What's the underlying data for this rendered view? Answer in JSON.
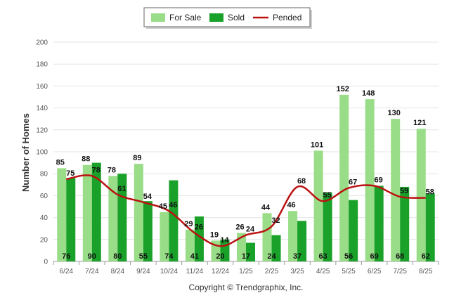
{
  "chart_data": {
    "type": "bar",
    "title": "",
    "xlabel": "",
    "ylabel": "Number of Homes",
    "ylim": [
      0,
      200
    ],
    "yticks": [
      "0",
      "20",
      "40",
      "60",
      "80",
      "100",
      "120",
      "140",
      "160",
      "180",
      "200"
    ],
    "grid": true,
    "legend_position": "top-center",
    "categories": [
      "6/24",
      "7/24",
      "8/24",
      "9/24",
      "10/24",
      "11/24",
      "12/24",
      "1/25",
      "2/25",
      "3/25",
      "4/25",
      "5/25",
      "6/25",
      "7/25",
      "8/25"
    ],
    "series": [
      {
        "name": "For Sale",
        "kind": "bar",
        "color": "#99dd88",
        "values": [
          85,
          88,
          78,
          89,
          45,
          29,
          19,
          26,
          44,
          46,
          101,
          152,
          148,
          130,
          121
        ]
      },
      {
        "name": "Sold",
        "kind": "bar",
        "color": "#1aa12a",
        "values": [
          76,
          90,
          80,
          55,
          74,
          41,
          20,
          17,
          24,
          37,
          63,
          56,
          69,
          68,
          62
        ]
      },
      {
        "name": "Pended",
        "kind": "line",
        "color": "#bb1111",
        "values": [
          75,
          78,
          61,
          54,
          46,
          26,
          14,
          24,
          32,
          68,
          55,
          67,
          69,
          59,
          58
        ]
      }
    ],
    "credit": "Copyright © Trendgraphix, Inc."
  }
}
